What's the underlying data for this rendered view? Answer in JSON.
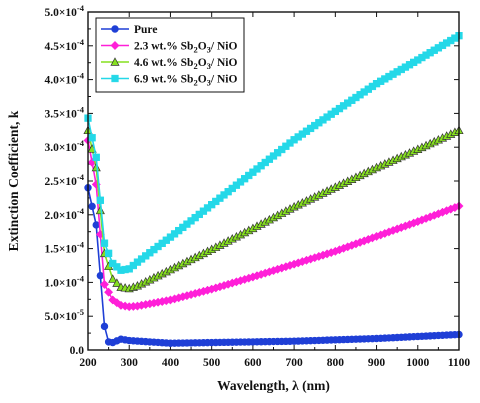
{
  "chart_data": {
    "type": "line",
    "xlabel": "Wavelength, λ (nm)",
    "ylabel": "Extinction Coefficient, k",
    "xlim": [
      200,
      1100
    ],
    "ylim": [
      0,
      0.0005
    ],
    "x_ticks": [
      200,
      300,
      400,
      500,
      600,
      700,
      800,
      900,
      1000,
      1100
    ],
    "x_tick_labels": [
      "200",
      "300",
      "400",
      "500",
      "600",
      "700",
      "800",
      "900",
      "1000",
      "1100"
    ],
    "y_ticks": [
      0,
      5e-05,
      0.0001,
      0.00015,
      0.0002,
      0.00025,
      0.0003,
      0.00035,
      0.0004,
      0.00045,
      0.0005
    ],
    "y_tick_labels": [
      {
        "m": "0.0",
        "e": ""
      },
      {
        "m": "5.0×10",
        "e": "-5"
      },
      {
        "m": "1.0×10",
        "e": "-4"
      },
      {
        "m": "1.5×10",
        "e": "-4"
      },
      {
        "m": "2.0×10",
        "e": "-4"
      },
      {
        "m": "2.5×10",
        "e": "-4"
      },
      {
        "m": "3.0×10",
        "e": "-4"
      },
      {
        "m": "3.5×10",
        "e": "-4"
      },
      {
        "m": "4.0×10",
        "e": "-4"
      },
      {
        "m": "4.5×10",
        "e": "-4"
      },
      {
        "m": "5.0×10",
        "e": "-4"
      }
    ],
    "legend_position": "top-left",
    "series": [
      {
        "name": "Pure",
        "legend": [
          {
            "t": "Pure"
          }
        ],
        "color": "#1f3fd6",
        "marker": "circle",
        "points": [
          [
            200,
            0.00024
          ],
          [
            220,
            0.000185
          ],
          [
            240,
            3.5e-05
          ],
          [
            250,
            1.2e-05
          ],
          [
            260,
            1.1e-05
          ],
          [
            280,
            1.6e-05
          ],
          [
            300,
            1.4e-05
          ],
          [
            400,
            1e-05
          ],
          [
            500,
            1.1e-05
          ],
          [
            600,
            1.2e-05
          ],
          [
            700,
            1.3e-05
          ],
          [
            800,
            1.5e-05
          ],
          [
            900,
            1.7e-05
          ],
          [
            1000,
            2e-05
          ],
          [
            1100,
            2.3e-05
          ]
        ]
      },
      {
        "name": "2.3 wt.% Sb2O3/ NiO",
        "legend": [
          {
            "t": "2.3 wt.% Sb"
          },
          {
            "t": "2",
            "sub": true
          },
          {
            "t": "O"
          },
          {
            "t": "3",
            "sub": true
          },
          {
            "t": "/ NiO"
          }
        ],
        "color": "#ff1fd8",
        "marker": "diamond",
        "points": [
          [
            200,
            0.00031
          ],
          [
            220,
            0.000245
          ],
          [
            240,
            9.7e-05
          ],
          [
            260,
            7.4e-05
          ],
          [
            280,
            6.6e-05
          ],
          [
            300,
            6.4e-05
          ],
          [
            320,
            6.5e-05
          ],
          [
            400,
            7.4e-05
          ],
          [
            500,
            9e-05
          ],
          [
            600,
            0.000108
          ],
          [
            700,
            0.000127
          ],
          [
            800,
            0.000146
          ],
          [
            900,
            0.000168
          ],
          [
            1000,
            0.00019
          ],
          [
            1100,
            0.000213
          ]
        ]
      },
      {
        "name": "4.6 wt.% Sb2O3/ NiO",
        "legend": [
          {
            "t": "4.6 wt.% Sb"
          },
          {
            "t": "2",
            "sub": true
          },
          {
            "t": "O"
          },
          {
            "t": "3",
            "sub": true
          },
          {
            "t": "/ NiO"
          }
        ],
        "color": "#86e01f",
        "marker": "triangle",
        "points": [
          [
            200,
            0.000325
          ],
          [
            220,
            0.00027
          ],
          [
            240,
            0.000143
          ],
          [
            260,
            0.000105
          ],
          [
            280,
            9.3e-05
          ],
          [
            300,
            9.1e-05
          ],
          [
            320,
            9.5e-05
          ],
          [
            400,
            0.000119
          ],
          [
            500,
            0.000149
          ],
          [
            600,
            0.00018
          ],
          [
            700,
            0.000212
          ],
          [
            800,
            0.000241
          ],
          [
            900,
            0.00027
          ],
          [
            1000,
            0.000297
          ],
          [
            1100,
            0.000325
          ]
        ]
      },
      {
        "name": "6.9 wt.% Sb2O3/ NiO",
        "legend": [
          {
            "t": "6.9 wt.% Sb"
          },
          {
            "t": "2",
            "sub": true
          },
          {
            "t": "O"
          },
          {
            "t": "3",
            "sub": true
          },
          {
            "t": "/ NiO"
          }
        ],
        "color": "#24d8e8",
        "marker": "square",
        "points": [
          [
            200,
            0.000343
          ],
          [
            220,
            0.000285
          ],
          [
            240,
            0.000158
          ],
          [
            260,
            0.000128
          ],
          [
            280,
            0.000118
          ],
          [
            300,
            0.00012
          ],
          [
            320,
            0.00013
          ],
          [
            400,
            0.000167
          ],
          [
            500,
            0.000215
          ],
          [
            600,
            0.000263
          ],
          [
            700,
            0.000311
          ],
          [
            800,
            0.000353
          ],
          [
            900,
            0.000394
          ],
          [
            1000,
            0.000429
          ],
          [
            1100,
            0.000465
          ]
        ]
      }
    ]
  }
}
